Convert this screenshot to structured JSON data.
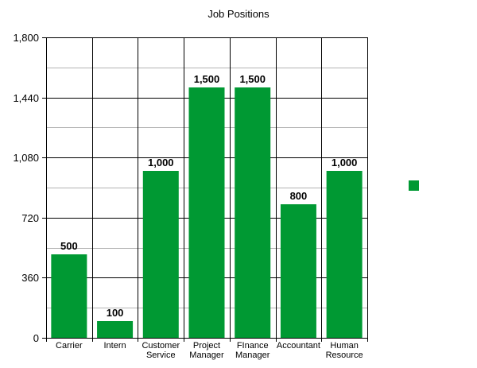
{
  "chart_data": {
    "type": "bar",
    "title": "Job Positions",
    "categories": [
      [
        "Carrier"
      ],
      [
        "Intern"
      ],
      [
        "Customer",
        "Service"
      ],
      [
        "Project",
        "Manager"
      ],
      [
        "FInance",
        "Manager"
      ],
      [
        "Accountant"
      ],
      [
        "Human",
        "Resource"
      ]
    ],
    "series": [
      {
        "values": [
          500,
          100,
          1000,
          1500,
          1500,
          800,
          1000
        ],
        "color": "#009933"
      }
    ],
    "data_labels": [
      "500",
      "100",
      "1,000",
      "1,500",
      "1,500",
      "800",
      "1,000"
    ],
    "ylim": [
      0,
      1800
    ],
    "yticks": [
      0,
      360,
      720,
      1080,
      1440,
      1800
    ],
    "ytick_labels": [
      "0",
      "360",
      "720",
      "1,080",
      "1,440",
      "1,800"
    ],
    "grid": {
      "major": true,
      "minor": true,
      "vertical": true
    },
    "legend": {
      "position": "right",
      "entries": [
        {
          "color": "#009933"
        }
      ]
    },
    "colors": {
      "bar": "#009933",
      "grid_major": "#000000",
      "grid_minor": "#b3b3b3"
    }
  }
}
